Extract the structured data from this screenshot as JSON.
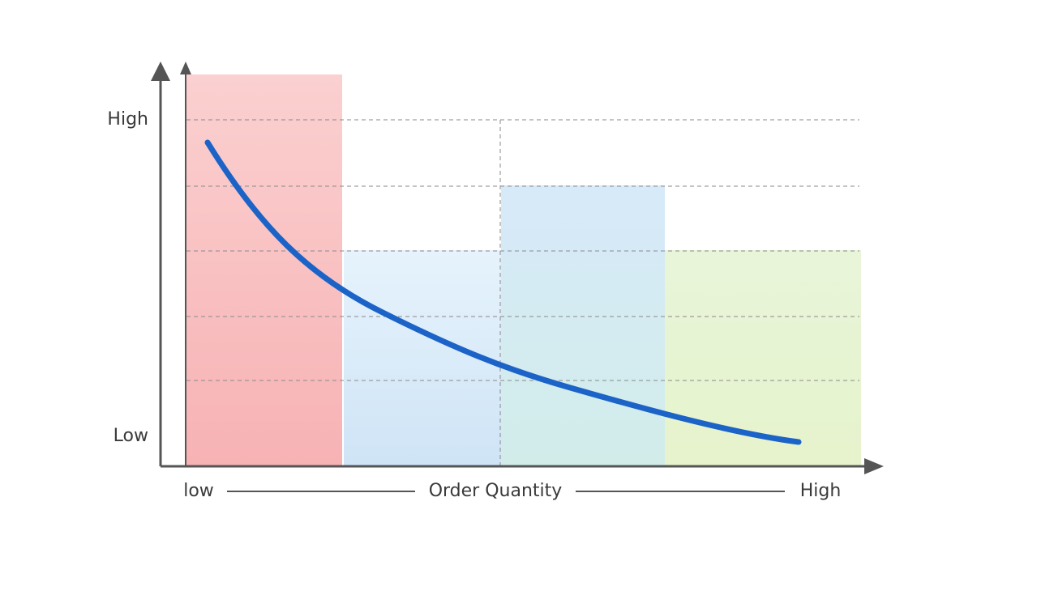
{
  "y_axis": {
    "high_label": "High",
    "low_label": "Low"
  },
  "x_axis": {
    "low_label": "low",
    "title": "Order Quantity",
    "high_label": "High"
  }
}
